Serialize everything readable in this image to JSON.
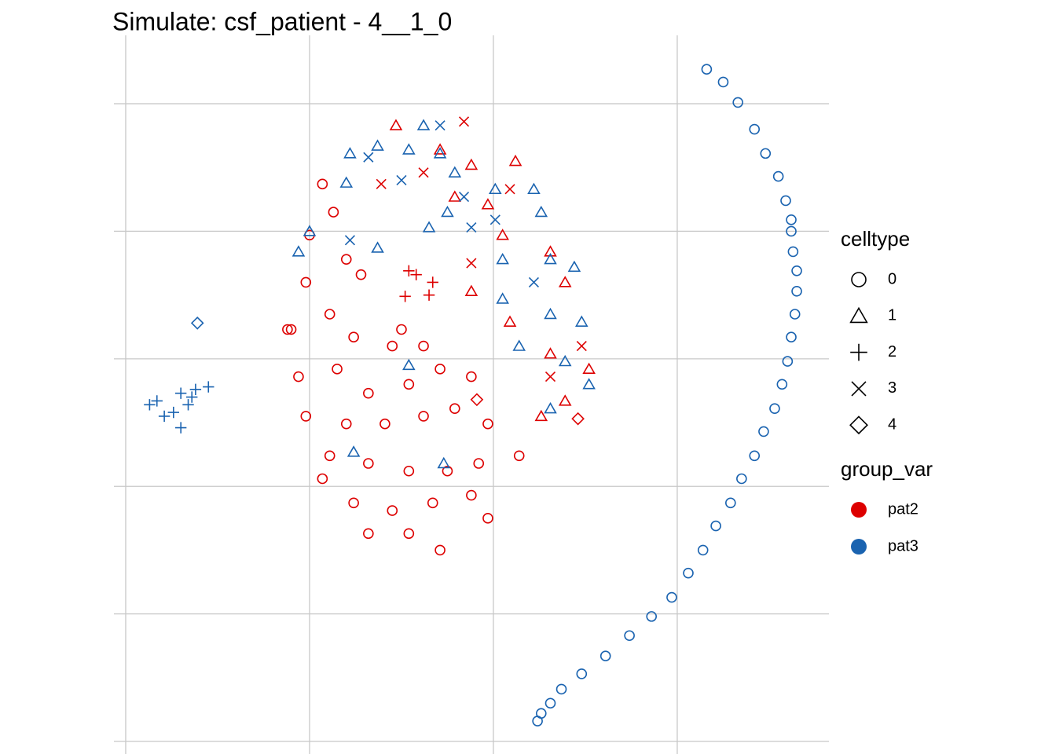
{
  "chart_data": {
    "type": "scatter",
    "title": "Simulate: csf_patient - 4__1_0",
    "xlim": [
      -0.64,
      38.25
    ],
    "ylim": [
      -0.86,
      55.36
    ],
    "xticks": [
      0,
      10,
      20,
      30
    ],
    "yticks": [
      0,
      10,
      20,
      30,
      40,
      50
    ],
    "grid": true,
    "shape_legend": {
      "title": "celltype",
      "categories": [
        "0",
        "1",
        "2",
        "3",
        "4"
      ]
    },
    "color_legend_title": "group_var",
    "series": [
      {
        "name": "pat2",
        "color": "#dd0000",
        "x": [
          10.7,
          11.3,
          10.0,
          12.0,
          9.8,
          12.8,
          11.1,
          9.0,
          12.4,
          14.5,
          16.2,
          9.4,
          11.5,
          13.2,
          15.4,
          17.1,
          18.8,
          9.8,
          12.0,
          14.1,
          16.2,
          17.9,
          19.7,
          11.1,
          13.2,
          15.4,
          17.5,
          19.2,
          21.4,
          12.4,
          14.5,
          16.7,
          18.8,
          13.2,
          15.4,
          17.1,
          19.7,
          10.7,
          15.0,
          8.8,
          15.4,
          16.5,
          15.2,
          16.7,
          15.8,
          14.7,
          17.1,
          18.8,
          21.2,
          19.7,
          23.1,
          23.9,
          20.9,
          23.1,
          25.2,
          23.9,
          22.6,
          18.8,
          17.9,
          20.5,
          18.4,
          13.9,
          18.8,
          16.2,
          20.9,
          24.8,
          23.1,
          19.1,
          24.6
        ],
        "values": [
          43.7,
          41.5,
          39.7,
          37.8,
          36.0,
          36.6,
          33.5,
          32.3,
          31.7,
          31.0,
          31.0,
          28.6,
          29.2,
          27.3,
          28.0,
          29.2,
          28.6,
          25.5,
          24.9,
          24.9,
          25.5,
          26.1,
          24.9,
          22.4,
          21.8,
          21.2,
          21.2,
          21.8,
          22.4,
          18.7,
          18.1,
          18.7,
          19.3,
          16.3,
          16.3,
          15.0,
          17.5,
          20.6,
          32.3,
          32.3,
          36.9,
          35.0,
          34.9,
          36.0,
          36.6,
          48.3,
          46.4,
          45.2,
          45.5,
          42.1,
          38.4,
          36.0,
          32.9,
          30.4,
          29.2,
          26.7,
          25.5,
          35.3,
          42.7,
          39.7,
          48.6,
          43.7,
          37.5,
          44.6,
          43.3,
          31.0,
          28.6,
          26.8,
          25.3
        ],
        "celltype": [
          "0",
          "0",
          "0",
          "0",
          "0",
          "0",
          "0",
          "0",
          "0",
          "0",
          "0",
          "0",
          "0",
          "0",
          "0",
          "0",
          "0",
          "0",
          "0",
          "0",
          "0",
          "0",
          "0",
          "0",
          "0",
          "0",
          "0",
          "0",
          "0",
          "0",
          "0",
          "0",
          "0",
          "0",
          "0",
          "0",
          "0",
          "0",
          "0",
          "0",
          "2",
          "2",
          "2",
          "2",
          "2",
          "1",
          "1",
          "1",
          "1",
          "1",
          "1",
          "1",
          "1",
          "1",
          "1",
          "1",
          "1",
          "1",
          "1",
          "1",
          "3",
          "3",
          "3",
          "3",
          "3",
          "3",
          "3",
          "4",
          "4"
        ]
      },
      {
        "name": "pat3",
        "color": "#1a63b0",
        "x": [
          3.0,
          1.7,
          3.8,
          2.6,
          3.4,
          1.3,
          4.5,
          3.0,
          2.1,
          3.6,
          3.9,
          12.2,
          13.7,
          15.4,
          17.1,
          16.2,
          17.9,
          20.1,
          22.2,
          22.6,
          20.5,
          23.1,
          24.4,
          20.5,
          23.1,
          24.8,
          21.4,
          23.9,
          25.2,
          23.1,
          9.4,
          13.7,
          16.5,
          17.5,
          12.4,
          17.3,
          15.4,
          10.0,
          12.0,
          17.1,
          13.2,
          15.0,
          18.8,
          12.2,
          20.1,
          22.2,
          18.4,
          31.6,
          32.5,
          33.3,
          34.2,
          34.8,
          35.5,
          35.9,
          36.2,
          36.2,
          36.3,
          36.5,
          36.5,
          36.4,
          36.2,
          36.0,
          35.7,
          35.3,
          34.7,
          34.2,
          33.5,
          32.9,
          32.1,
          31.4,
          30.6,
          29.7,
          28.6,
          27.4,
          26.1,
          24.8,
          23.7,
          23.1,
          22.6,
          22.4
        ],
        "values": [
          27.3,
          26.7,
          27.6,
          25.8,
          26.4,
          26.4,
          27.8,
          24.6,
          25.5,
          27.0,
          32.8,
          46.1,
          46.7,
          46.4,
          46.1,
          48.3,
          44.6,
          43.3,
          43.3,
          41.5,
          37.8,
          37.8,
          37.2,
          34.7,
          33.5,
          32.9,
          31.0,
          29.8,
          28.0,
          26.1,
          38.4,
          38.7,
          40.3,
          41.5,
          22.7,
          21.8,
          29.5,
          40.0,
          43.8,
          48.3,
          45.8,
          44.0,
          40.3,
          39.3,
          40.9,
          36.0,
          42.7,
          52.7,
          51.7,
          50.1,
          48.0,
          46.1,
          44.3,
          42.4,
          40.9,
          40.0,
          38.4,
          36.9,
          35.3,
          33.5,
          31.7,
          29.8,
          28.0,
          26.1,
          24.3,
          22.4,
          20.6,
          18.7,
          16.9,
          15.0,
          13.2,
          11.3,
          9.8,
          8.3,
          6.7,
          5.3,
          4.1,
          3.0,
          2.2,
          1.6
        ],
        "celltype": [
          "2",
          "2",
          "2",
          "2",
          "2",
          "2",
          "2",
          "2",
          "2",
          "2",
          "4",
          "1",
          "1",
          "1",
          "1",
          "1",
          "1",
          "1",
          "1",
          "1",
          "1",
          "1",
          "1",
          "1",
          "1",
          "1",
          "1",
          "1",
          "1",
          "1",
          "1",
          "1",
          "1",
          "1",
          "1",
          "1",
          "1",
          "1",
          "1",
          "3",
          "3",
          "3",
          "3",
          "3",
          "3",
          "3",
          "3",
          "0",
          "0",
          "0",
          "0",
          "0",
          "0",
          "0",
          "0",
          "0",
          "0",
          "0",
          "0",
          "0",
          "0",
          "0",
          "0",
          "0",
          "0",
          "0",
          "0",
          "0",
          "0",
          "0",
          "0",
          "0",
          "0",
          "0",
          "0",
          "0",
          "0",
          "0",
          "0",
          "0"
        ]
      }
    ]
  }
}
